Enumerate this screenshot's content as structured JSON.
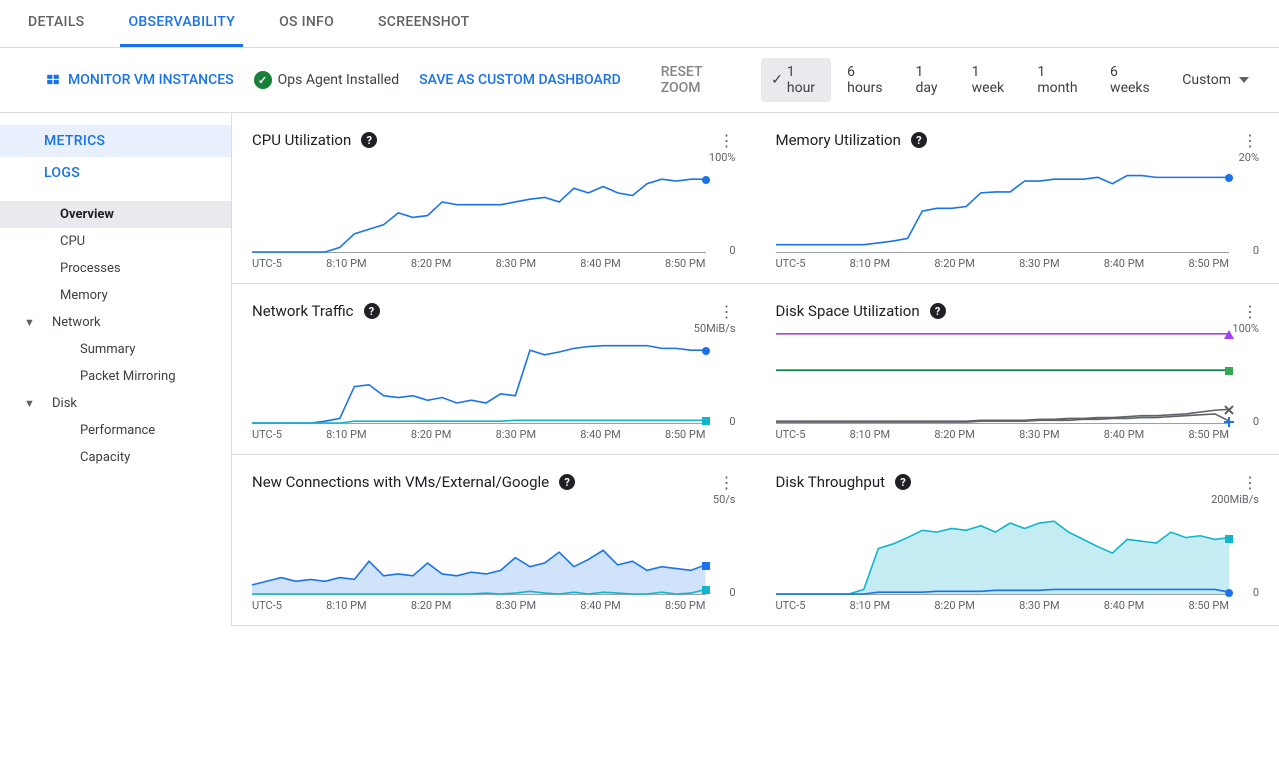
{
  "tabs": [
    "DETAILS",
    "OBSERVABILITY",
    "OS INFO",
    "SCREENSHOT"
  ],
  "active_tab": 1,
  "toolbar": {
    "monitor": "MONITOR VM INSTANCES",
    "agent": "Ops Agent Installed",
    "save": "SAVE AS CUSTOM DASHBOARD",
    "reset": "RESET ZOOM",
    "ranges": [
      "1 hour",
      "6 hours",
      "1 day",
      "1 week",
      "1 month",
      "6 weeks",
      "Custom"
    ],
    "active_range": 0
  },
  "sidebar": {
    "top": [
      "METRICS",
      "LOGS"
    ],
    "top_active": 0,
    "tree": [
      {
        "label": "Overview",
        "level": 1,
        "expand": "",
        "sel": true
      },
      {
        "label": "CPU",
        "level": 1,
        "expand": ""
      },
      {
        "label": "Processes",
        "level": 1,
        "expand": ""
      },
      {
        "label": "Memory",
        "level": 1,
        "expand": ""
      },
      {
        "label": "Network",
        "level": 1,
        "expand": "▼"
      },
      {
        "label": "Summary",
        "level": 2,
        "expand": ""
      },
      {
        "label": "Packet Mirroring",
        "level": 2,
        "expand": ""
      },
      {
        "label": "Disk",
        "level": 1,
        "expand": "▼"
      },
      {
        "label": "Performance",
        "level": 2,
        "expand": ""
      },
      {
        "label": "Capacity",
        "level": 2,
        "expand": ""
      }
    ]
  },
  "xaxis_labels": [
    "UTC-5",
    "8:10 PM",
    "8:20 PM",
    "8:30 PM",
    "8:40 PM",
    "8:50 PM"
  ],
  "charts": [
    {
      "title": "CPU Utilization",
      "ytop": "100%",
      "ybot": "0",
      "series": [
        {
          "color": "#1a73e8",
          "fill": "none",
          "end": "circle",
          "end_color": "#1a73e8",
          "data": [
            0,
            0,
            0,
            0,
            0,
            0,
            5,
            20,
            25,
            30,
            43,
            38,
            40,
            55,
            52,
            52,
            52,
            52,
            55,
            58,
            60,
            55,
            70,
            65,
            72,
            65,
            62,
            75,
            80,
            78,
            80,
            80
          ]
        }
      ]
    },
    {
      "title": "Memory Utilization",
      "ytop": "20%",
      "ybot": "0",
      "series": [
        {
          "color": "#1a73e8",
          "fill": "none",
          "end": "circle",
          "end_color": "#1a73e8",
          "data": [
            8,
            8,
            8,
            8,
            8,
            8,
            8,
            10,
            12,
            15,
            45,
            48,
            48,
            50,
            65,
            66,
            66,
            78,
            78,
            80,
            80,
            80,
            82,
            75,
            84,
            84,
            82,
            82,
            82,
            82,
            82,
            82
          ]
        }
      ]
    },
    {
      "title": "Network Traffic",
      "ytop": "50MiB/s",
      "ybot": "0",
      "series": [
        {
          "color": "#1a73e8",
          "fill": "none",
          "end": "circle",
          "end_color": "#1a73e8",
          "data": [
            0,
            0,
            0,
            0,
            0,
            2,
            5,
            40,
            42,
            30,
            28,
            30,
            25,
            28,
            22,
            25,
            22,
            32,
            30,
            80,
            75,
            78,
            82,
            84,
            85,
            85,
            85,
            85,
            82,
            82,
            80,
            80
          ]
        },
        {
          "color": "#12b5cb",
          "fill": "none",
          "end": "square",
          "end_color": "#12b5cb",
          "data": [
            0,
            0,
            0,
            0,
            0,
            0,
            0,
            2,
            2,
            2,
            2,
            2,
            2,
            2,
            2,
            2,
            2,
            2,
            3,
            3,
            3,
            3,
            3,
            3,
            3,
            3,
            3,
            3,
            3,
            3,
            3,
            3
          ]
        }
      ]
    },
    {
      "title": "Disk Space Utilization",
      "ytop": "100%",
      "ybot": "0",
      "series": [
        {
          "color": "#a142f4",
          "fill": "none",
          "end": "triangle",
          "end_color": "#a142f4",
          "data": [
            98,
            98,
            98,
            98,
            98,
            98,
            98,
            98,
            98,
            98,
            98,
            98,
            98,
            98,
            98,
            98,
            98,
            98,
            98,
            98,
            98,
            98,
            98,
            98,
            98,
            98,
            98,
            98,
            98,
            98,
            98,
            98
          ]
        },
        {
          "color": "#0b8043",
          "fill": "none",
          "end": "square",
          "end_color": "#34a853",
          "data": [
            58,
            58,
            58,
            58,
            58,
            58,
            58,
            58,
            58,
            58,
            58,
            58,
            58,
            58,
            58,
            58,
            58,
            58,
            58,
            58,
            58,
            58,
            58,
            58,
            58,
            58,
            58,
            58,
            58,
            58,
            58,
            58
          ]
        },
        {
          "color": "#5f6368",
          "fill": "none",
          "end": "plus",
          "end_color": "#1a73e8",
          "data": [
            1,
            1,
            1,
            1,
            1,
            1,
            1,
            1,
            1,
            1,
            1,
            1,
            1,
            1,
            2,
            2,
            2,
            2,
            3,
            3,
            3,
            4,
            4,
            5,
            5,
            6,
            6,
            7,
            8,
            9,
            10,
            2
          ]
        },
        {
          "color": "#5f6368",
          "fill": "none",
          "end": "x",
          "end_color": "#5f6368",
          "data": [
            2,
            2,
            2,
            2,
            2,
            2,
            2,
            2,
            2,
            2,
            2,
            2,
            2,
            2,
            3,
            3,
            3,
            3,
            4,
            4,
            5,
            5,
            6,
            6,
            7,
            8,
            8,
            9,
            10,
            12,
            14,
            15
          ]
        }
      ]
    },
    {
      "title": "New Connections with VMs/External/Google",
      "ytop": "50/s",
      "ybot": "0",
      "series": [
        {
          "color": "#1a73e8",
          "fill": "rgba(26,115,232,0.2)",
          "end": "square",
          "end_color": "#1a73e8",
          "data": [
            10,
            14,
            18,
            14,
            16,
            14,
            18,
            16,
            36,
            20,
            22,
            20,
            34,
            22,
            20,
            24,
            22,
            26,
            40,
            30,
            34,
            46,
            30,
            38,
            48,
            32,
            36,
            26,
            30,
            28,
            26,
            32
          ]
        },
        {
          "color": "#12b5cb",
          "fill": "none",
          "end": "square",
          "end_color": "#12b5cb",
          "data": [
            0,
            0,
            0,
            0,
            0,
            0,
            0,
            0,
            0,
            0,
            0,
            0,
            0,
            0,
            0,
            0,
            1,
            0,
            1,
            3,
            1,
            0,
            2,
            0,
            2,
            1,
            0,
            0,
            2,
            0,
            1,
            5
          ]
        }
      ]
    },
    {
      "title": "Disk Throughput",
      "ytop": "200MiB/s",
      "ybot": "0",
      "series": [
        {
          "color": "#12b5cb",
          "fill": "rgba(18,181,203,0.25)",
          "end": "square",
          "end_color": "#12b5cb",
          "data": [
            0,
            0,
            0,
            0,
            0,
            0,
            5,
            50,
            55,
            62,
            70,
            68,
            72,
            70,
            75,
            68,
            78,
            72,
            78,
            80,
            68,
            60,
            52,
            45,
            60,
            58,
            56,
            68,
            62,
            64,
            60,
            62
          ]
        },
        {
          "color": "#1a73e8",
          "fill": "none",
          "end": "circle",
          "end_color": "#1a73e8",
          "data": [
            0,
            0,
            0,
            0,
            0,
            0,
            0,
            2,
            2,
            2,
            2,
            3,
            3,
            3,
            3,
            4,
            4,
            4,
            4,
            5,
            5,
            5,
            5,
            5,
            5,
            5,
            5,
            5,
            5,
            5,
            5,
            2
          ]
        }
      ]
    }
  ],
  "colors": {
    "primary": "#1a73e8",
    "border": "#dadce0",
    "text_muted": "#5f6368"
  }
}
